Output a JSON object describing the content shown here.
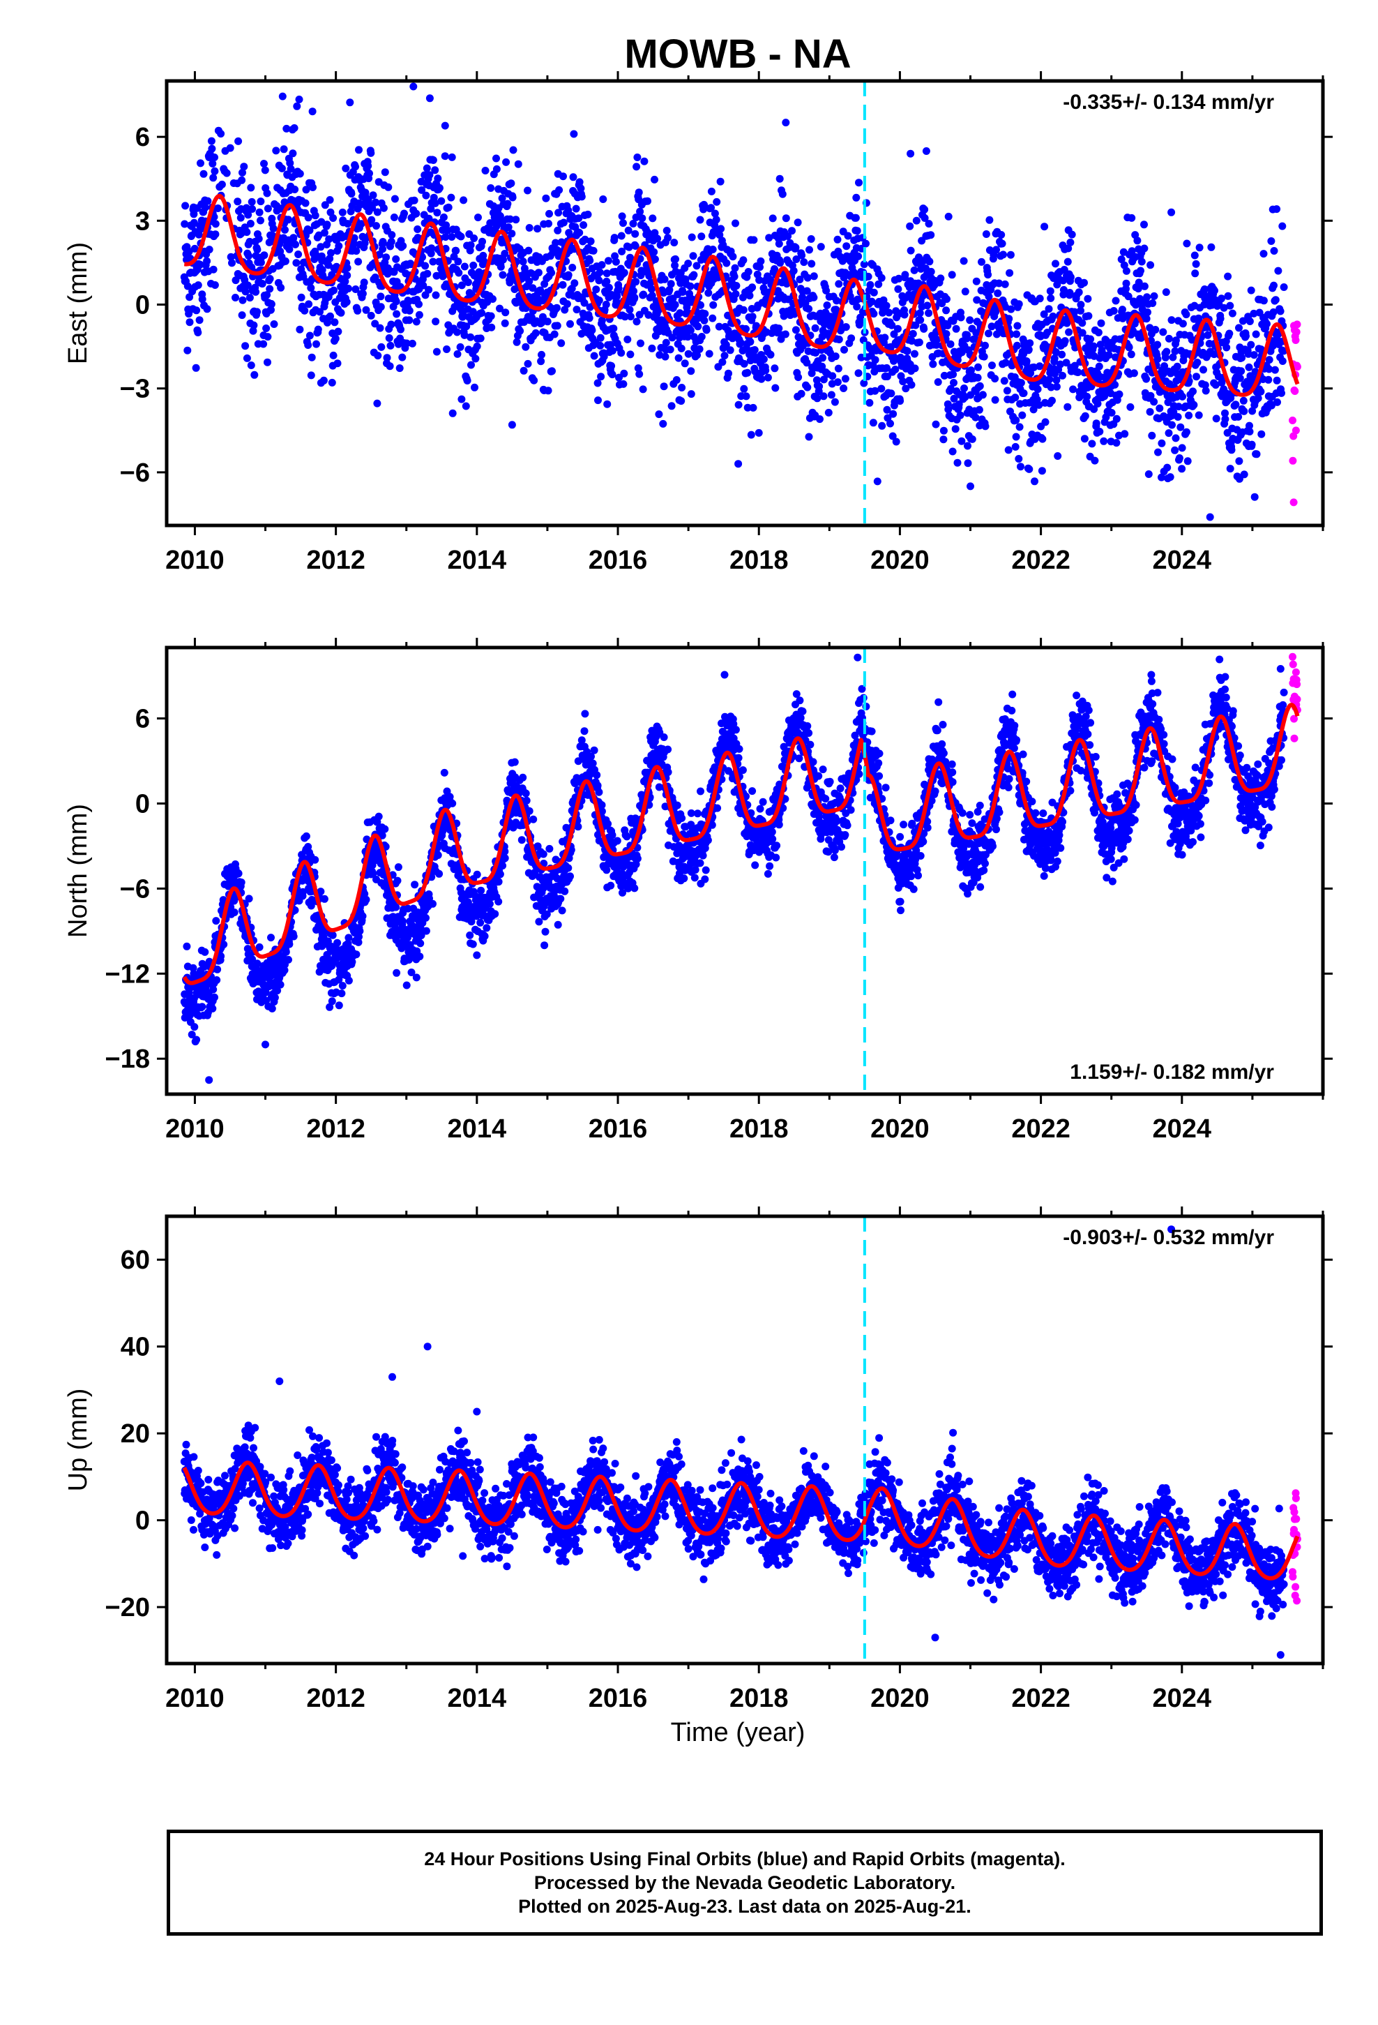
{
  "title": "MOWB - NA",
  "xlabel": "Time (year)",
  "footer": {
    "line1": "24 Hour Positions Using Final Orbits (blue) and Rapid Orbits (magenta).",
    "line2": "Processed by the Nevada Geodetic Laboratory.",
    "line3": "Plotted on 2025-Aug-23. Last data on 2025-Aug-21."
  },
  "colors": {
    "final_orbits": "#0000ff",
    "rapid_orbits": "#ff00ff",
    "model": "#ff0000",
    "event_line": "#00e5ff",
    "axes": "#000000"
  },
  "chart_data": [
    {
      "type": "scatter",
      "component": "east",
      "ylabel": "East (mm)",
      "rate_label": "-0.335+/- 0.134 mm/yr",
      "rate_position": "top-right",
      "xlim": [
        2009.6,
        2026.0
      ],
      "ylim": [
        -7.9,
        8.0
      ],
      "xticks": [
        2010,
        2012,
        2014,
        2016,
        2018,
        2020,
        2022,
        2024
      ],
      "yticks": [
        -6,
        -3,
        0,
        3,
        6
      ],
      "event_line_x": 2019.5,
      "data_span": [
        2009.85,
        2025.64
      ],
      "rapid_span": [
        2025.45,
        2025.64
      ],
      "model": {
        "trend": [
          [
            2009.85,
            2.5
          ],
          [
            2013.5,
            1.3
          ],
          [
            2017.0,
            0.3
          ],
          [
            2019.45,
            -0.7
          ],
          [
            2019.55,
            -0.5
          ],
          [
            2022.0,
            -1.7
          ],
          [
            2025.6,
            -2.3
          ]
        ],
        "amp1": 1.3,
        "amp2": 0.25,
        "phase": 0.35,
        "noise": 1.5
      },
      "outliers": [
        [
          2013.1,
          7.8
        ],
        [
          2013.55,
          6.4
        ],
        [
          2020.15,
          5.4
        ],
        [
          2023.85,
          3.3
        ],
        [
          2021.0,
          -6.5
        ],
        [
          2024.4,
          -7.6
        ],
        [
          2014.5,
          -4.3
        ]
      ],
      "grid": false
    },
    {
      "type": "scatter",
      "component": "north",
      "ylabel": "North (mm)",
      "rate_label": "1.159+/- 0.182 mm/yr",
      "rate_position": "bottom-right",
      "xlim": [
        2009.6,
        2026.0
      ],
      "ylim": [
        -20.5,
        11.0
      ],
      "xticks": [
        2010,
        2012,
        2014,
        2016,
        2018,
        2020,
        2022,
        2024
      ],
      "yticks": [
        -18,
        -12,
        -6,
        0,
        6
      ],
      "event_line_x": 2019.5,
      "data_span": [
        2009.85,
        2025.64
      ],
      "rapid_span": [
        2025.45,
        2025.64
      ],
      "model": {
        "trend": [
          [
            2009.85,
            -10.8
          ],
          [
            2012.0,
            -8.5
          ],
          [
            2014.0,
            -4.5
          ],
          [
            2016.0,
            -1.5
          ],
          [
            2019.45,
            2.2
          ],
          [
            2019.55,
            -1.5
          ],
          [
            2022.0,
            0.0
          ],
          [
            2025.6,
            3.5
          ]
        ],
        "amp1": 3.8,
        "amp2": 0.8,
        "phase": 0.55,
        "noise": 1.2
      },
      "fit": {
        "trend": [
          [
            2009.85,
            -10.8
          ],
          [
            2013.5,
            -4.0
          ],
          [
            2019.45,
            2.0
          ],
          [
            2019.55,
            -1.5
          ],
          [
            2025.6,
            3.5
          ]
        ],
        "amp1": 2.8,
        "amp2": 0.7,
        "phase": 0.55
      },
      "outliers": [
        [
          2010.2,
          -19.5
        ],
        [
          2011.0,
          -17.0
        ],
        [
          2014.0,
          -10.7
        ],
        [
          2019.4,
          10.3
        ],
        [
          2025.4,
          9.5
        ]
      ],
      "grid": false
    },
    {
      "type": "scatter",
      "component": "up",
      "ylabel": "Up (mm)",
      "rate_label": "-0.903+/- 0.532 mm/yr",
      "rate_position": "top-right",
      "xlim": [
        2009.6,
        2026.0
      ],
      "ylim": [
        -33,
        70
      ],
      "xticks": [
        2010,
        2012,
        2014,
        2016,
        2018,
        2020,
        2022,
        2024
      ],
      "yticks": [
        -20,
        0,
        20,
        40,
        60
      ],
      "event_line_x": 2019.5,
      "data_span": [
        2009.85,
        2025.64
      ],
      "rapid_span": [
        2025.45,
        2025.64
      ],
      "model": {
        "trend": [
          [
            2009.85,
            7.0
          ],
          [
            2014.0,
            4.5
          ],
          [
            2019.45,
            0.5
          ],
          [
            2019.55,
            1.0
          ],
          [
            2022.0,
            -5.0
          ],
          [
            2025.6,
            -8.5
          ]
        ],
        "amp1": 6.0,
        "amp2": 0.8,
        "phase": 0.75,
        "noise": 4.0
      },
      "outliers": [
        [
          2011.2,
          32.0
        ],
        [
          2013.3,
          40.0
        ],
        [
          2012.8,
          33.0
        ],
        [
          2014.0,
          25.0
        ],
        [
          2023.85,
          67.0
        ],
        [
          2020.5,
          -27.0
        ],
        [
          2025.4,
          -31.0
        ]
      ],
      "grid": false
    }
  ]
}
